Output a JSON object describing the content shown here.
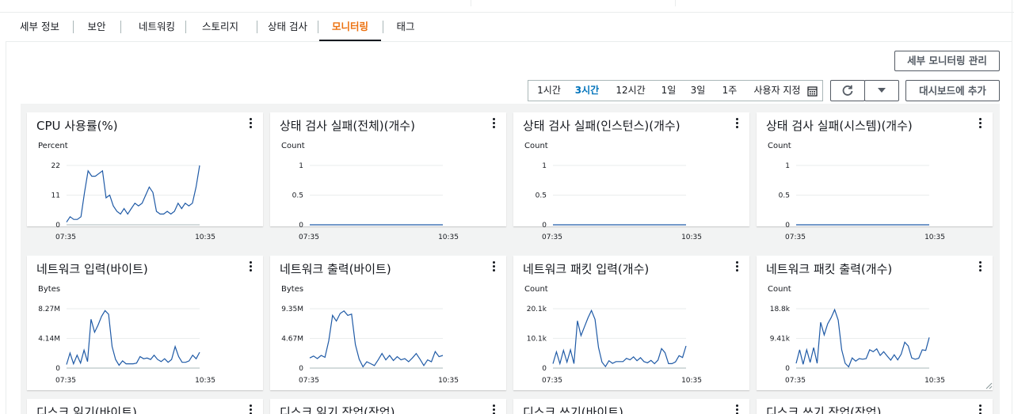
{
  "tabs": [
    {
      "label": "세부 정보",
      "active": false
    },
    {
      "label": "보안",
      "active": false
    },
    {
      "label": "네트워킹",
      "active": false
    },
    {
      "label": "스토리지",
      "active": false
    },
    {
      "label": "상태 검사",
      "active": false
    },
    {
      "label": "모니터링",
      "active": true
    },
    {
      "label": "태그",
      "active": false
    }
  ],
  "toolbar": {
    "manage_monitoring": "세부 모니터링 관리",
    "add_to_dashboard": "대시보드에 추가",
    "refresh_icon": "refresh-icon",
    "dropdown_icon": "caret-down-icon",
    "calendar_icon": "calendar-icon"
  },
  "time_ranges": [
    {
      "label": "1시간",
      "active": false
    },
    {
      "label": "3시간",
      "active": true
    },
    {
      "label": "12시간",
      "active": false
    },
    {
      "label": "1일",
      "active": false
    },
    {
      "label": "3일",
      "active": false
    },
    {
      "label": "1주",
      "active": false
    },
    {
      "label": "사용자 지정",
      "active": false
    }
  ],
  "colors": {
    "accent": "#ec7211",
    "active_range": "#0073bb",
    "series": "#1f5aa6"
  },
  "chart_data": [
    {
      "type": "line",
      "title": "CPU 사용률(%)",
      "ylabel": "Percent",
      "yticks": [
        "0",
        "11",
        "22"
      ],
      "ylim": [
        0,
        22
      ],
      "x_start": "07:35",
      "x_end": "10:35",
      "values": [
        1,
        3,
        2,
        2,
        3,
        12,
        20,
        18,
        18,
        19,
        20,
        10,
        11,
        7,
        5,
        4,
        6,
        4,
        6,
        8,
        7,
        8,
        11,
        14,
        12,
        5,
        4,
        4,
        5,
        4,
        5,
        8,
        6,
        8,
        7,
        8,
        14,
        22
      ]
    },
    {
      "type": "line",
      "title": "상태 검사 실패(전체)(개수)",
      "ylabel": "Count",
      "yticks": [
        "0",
        "0.5",
        "1"
      ],
      "ylim": [
        0,
        1
      ],
      "x_start": "07:35",
      "x_end": "10:35",
      "values": [
        0,
        0,
        0,
        0,
        0,
        0,
        0,
        0,
        0,
        0
      ]
    },
    {
      "type": "line",
      "title": "상태 검사 실패(인스턴스)(개수)",
      "ylabel": "Count",
      "yticks": [
        "0",
        "0.5",
        "1"
      ],
      "ylim": [
        0,
        1
      ],
      "x_start": "07:35",
      "x_end": "10:35",
      "values": [
        0,
        0,
        0,
        0,
        0,
        0,
        0,
        0,
        0,
        0
      ]
    },
    {
      "type": "line",
      "title": "상태 검사 실패(시스템)(개수)",
      "ylabel": "Count",
      "yticks": [
        "0",
        "0.5",
        "1"
      ],
      "ylim": [
        0,
        1
      ],
      "x_start": "07:35",
      "x_end": "10:35",
      "values": [
        0,
        0,
        0,
        0,
        0,
        0,
        0,
        0,
        0,
        0
      ]
    },
    {
      "type": "line",
      "title": "네트워크 입력(바이트)",
      "ylabel": "Bytes",
      "yticks": [
        "0",
        "4.14M",
        "8.27M"
      ],
      "ylim": [
        0,
        8.27
      ],
      "x_start": "07:35",
      "x_end": "10:35",
      "values": [
        0.5,
        2.1,
        0.6,
        1.8,
        0.7,
        2.5,
        0.9,
        6.8,
        5,
        6,
        7.2,
        8,
        7.5,
        3,
        1.2,
        0.4,
        1,
        0.6,
        0.6,
        0.6,
        0.7,
        1.6,
        1.3,
        1.4,
        1.2,
        1.8,
        1.2,
        0.9,
        1.3,
        0.8,
        1.2,
        3,
        1.6,
        0.8,
        0.8,
        1,
        1.8,
        1.3,
        2.2
      ]
    },
    {
      "type": "line",
      "title": "네트워크 출력(바이트)",
      "ylabel": "Bytes",
      "yticks": [
        "0",
        "4.67M",
        "9.35M"
      ],
      "ylim": [
        0,
        9.35
      ],
      "x_start": "07:35",
      "x_end": "10:35",
      "values": [
        1.6,
        1.9,
        1.5,
        2,
        1.7,
        4.3,
        8.3,
        7.4,
        8.6,
        9,
        8.3,
        8.5,
        3.7,
        1.4,
        0.2,
        1,
        0.7,
        0.4,
        1.3,
        2.3,
        1.3,
        2,
        1.2,
        1.8,
        1.3,
        1.5,
        1,
        1.6,
        2.3,
        1.4,
        0.4,
        1.3,
        1,
        2.6,
        1.8,
        2
      ]
    },
    {
      "type": "line",
      "title": "네트워크 패킷 입력(개수)",
      "ylabel": "Count",
      "yticks": [
        "0",
        "10.1k",
        "20.1k"
      ],
      "ylim": [
        0,
        20.1
      ],
      "x_start": "07:35",
      "x_end": "10:35",
      "values": [
        1.5,
        5.5,
        1.5,
        6,
        2,
        6.2,
        1.5,
        16,
        11,
        14,
        17,
        19.5,
        16.5,
        7,
        2,
        0.5,
        2.5,
        1.6,
        2.2,
        2.2,
        2.2,
        3.3,
        2.8,
        3.8,
        2.5,
        3.5,
        2.2,
        1.8,
        2.6,
        1.5,
        2.7,
        6.6,
        5.2,
        1.5,
        1.5,
        2.1,
        4.2,
        3.6,
        7.5
      ]
    },
    {
      "type": "line",
      "title": "네트워크 패킷 출력(개수)",
      "ylabel": "Count",
      "yticks": [
        "0",
        "9.41k",
        "18.8k"
      ],
      "ylim": [
        0,
        18.8
      ],
      "x_start": "07:35",
      "x_end": "10:35",
      "values": [
        1.5,
        5.8,
        1.2,
        5.8,
        1.8,
        6.5,
        1.5,
        14.5,
        10.5,
        14,
        16,
        18.5,
        15.2,
        5.8,
        1.5,
        0.4,
        3.2,
        2.2,
        3,
        2.8,
        3,
        5.8,
        5.2,
        6.1,
        4,
        5.2,
        3.8,
        2.5,
        4.2,
        2.6,
        4.4,
        8.2,
        7,
        3.2,
        2.8,
        3.1,
        5.8,
        5.6,
        9.7
      ]
    }
  ],
  "partial_titles": [
    "디스크 읽기(바이트)",
    "디스크 읽기 작업(작업)",
    "디스크 쓰기(바이트)",
    "디스크 쓰기 작업(작업)"
  ]
}
